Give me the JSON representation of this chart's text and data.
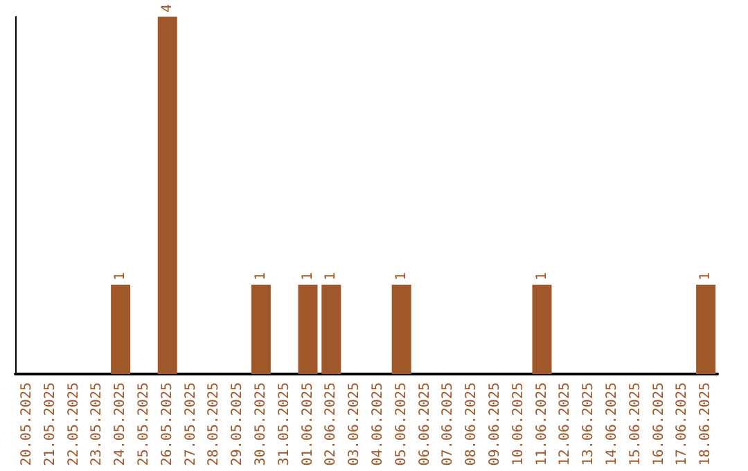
{
  "chart_data": {
    "type": "bar",
    "categories": [
      "20.05.2025",
      "21.05.2025",
      "22.05.2025",
      "23.05.2025",
      "24.05.2025",
      "25.05.2025",
      "26.05.2025",
      "27.05.2025",
      "28.05.2025",
      "29.05.2025",
      "30.05.2025",
      "31.05.2025",
      "01.06.2025",
      "02.06.2025",
      "03.06.2025",
      "04.06.2025",
      "05.06.2025",
      "06.06.2025",
      "07.06.2025",
      "08.06.2025",
      "09.06.2025",
      "10.06.2025",
      "11.06.2025",
      "12.06.2025",
      "13.06.2025",
      "14.06.2025",
      "15.06.2025",
      "16.06.2025",
      "17.06.2025",
      "18.06.2025"
    ],
    "values": [
      0,
      0,
      0,
      0,
      1,
      0,
      4,
      0,
      0,
      0,
      1,
      0,
      1,
      1,
      0,
      0,
      1,
      0,
      0,
      0,
      0,
      0,
      1,
      0,
      0,
      0,
      0,
      0,
      0,
      1
    ],
    "value_labels": [
      null,
      null,
      null,
      null,
      "1",
      null,
      "4",
      null,
      null,
      null,
      "1",
      null,
      "1",
      "1",
      null,
      null,
      "1",
      null,
      null,
      null,
      null,
      null,
      "1",
      null,
      null,
      null,
      null,
      null,
      null,
      "1"
    ],
    "color": "#a0572a",
    "tick_labels": "x"
  }
}
